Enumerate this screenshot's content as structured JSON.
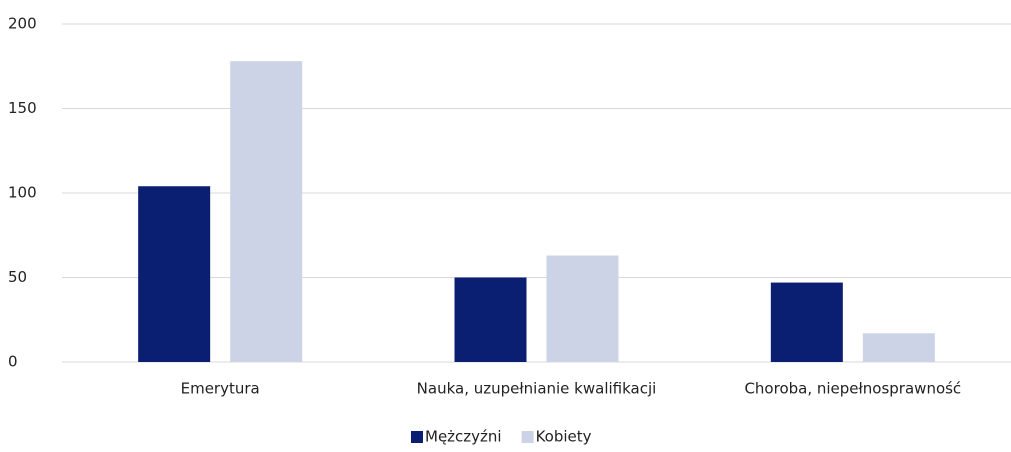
{
  "chart_data": {
    "type": "bar",
    "categories": [
      "Emerytura",
      "Nauka, uzupełnianie kwalifikacji",
      "Choroba, niepełnosprawność"
    ],
    "series": [
      {
        "name": "Mężczyźni",
        "color": "#0b1f72",
        "values": [
          104,
          50,
          47
        ]
      },
      {
        "name": "Kobiety",
        "color": "#cdd3e6",
        "values": [
          178,
          63,
          17
        ]
      }
    ],
    "ylim": [
      0,
      200
    ],
    "yticks": [
      0,
      50,
      100,
      150,
      200
    ],
    "grid": true,
    "legend": "bottom"
  }
}
